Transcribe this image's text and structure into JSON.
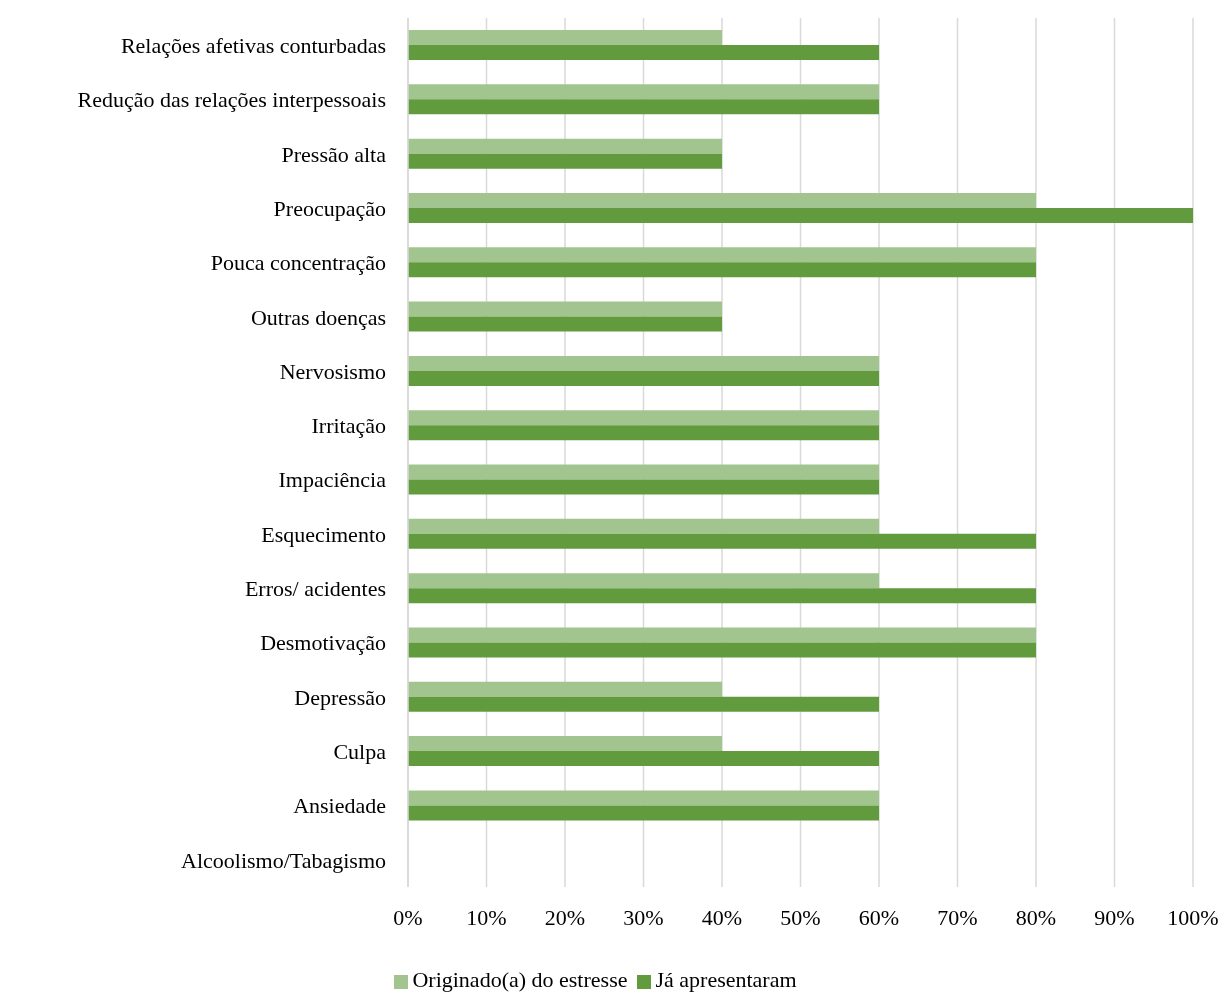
{
  "chart_data": {
    "type": "bar",
    "orientation": "horizontal",
    "categories": [
      "Relações afetivas conturbadas",
      "Redução das relações interpessoais",
      "Pressão alta",
      "Preocupação",
      "Pouca concentração",
      "Outras doenças",
      "Nervosismo",
      "Irritação",
      "Impaciência",
      "Esquecimento",
      "Erros/ acidentes",
      "Desmotivação",
      "Depressão",
      "Culpa",
      "Ansiedade",
      "Alcoolismo/Tabagismo"
    ],
    "series": [
      {
        "name": "Originado(a) do estresse",
        "color": "#a2c48e",
        "values": [
          40,
          60,
          40,
          80,
          80,
          40,
          60,
          60,
          60,
          60,
          60,
          80,
          40,
          40,
          60,
          0
        ]
      },
      {
        "name": "Já apresentaram",
        "color": "#629b3e",
        "values": [
          60,
          60,
          40,
          100,
          80,
          40,
          60,
          60,
          60,
          80,
          80,
          80,
          60,
          60,
          60,
          0
        ]
      }
    ],
    "xlim": [
      0,
      100
    ],
    "xticks": [
      {
        "value": 0,
        "label": "0%"
      },
      {
        "value": 10,
        "label": "10%"
      },
      {
        "value": 20,
        "label": "20%"
      },
      {
        "value": 30,
        "label": "30%"
      },
      {
        "value": 40,
        "label": "40%"
      },
      {
        "value": 50,
        "label": "50%"
      },
      {
        "value": 60,
        "label": "60%"
      },
      {
        "value": 70,
        "label": "70%"
      },
      {
        "value": 80,
        "label": "80%"
      },
      {
        "value": 90,
        "label": "90%"
      },
      {
        "value": 100,
        "label": "100%"
      }
    ],
    "grid": "x",
    "legend": "bottom"
  }
}
